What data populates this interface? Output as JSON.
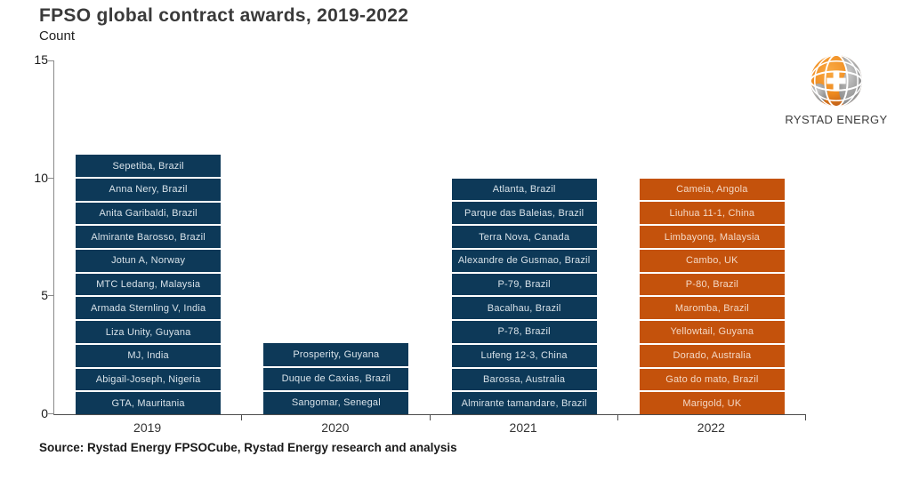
{
  "page": {
    "title": "FPSO global contract awards, 2019-2022",
    "subtitle": "Count",
    "source": "Source: Rystad Energy FPSOCube, Rystad Energy research and analysis",
    "logo_text": "RYSTAD ENERGY"
  },
  "colors": {
    "navy": "#0d3958",
    "orange": "#c4520c",
    "navy_label": "#d8e2e9",
    "orange_label": "#f4d8c5",
    "axis": "#4d4d4d",
    "logo_orange": "#ef8b1f",
    "logo_gray": "#8c8c8c"
  },
  "chart_data": {
    "type": "bar",
    "stacked": true,
    "title": "FPSO global contract awards, 2019-2022",
    "ylabel": "Count",
    "xlabel": "",
    "ylim": [
      0,
      15
    ],
    "yticks": [
      0,
      5,
      10,
      15
    ],
    "grid": false,
    "legend": "none",
    "categories": [
      "2019",
      "2020",
      "2021",
      "2022"
    ],
    "unit_per_segment": 1,
    "totals": {
      "2019": 11,
      "2020": 3,
      "2021": 10,
      "2022": 10
    },
    "bars": [
      {
        "category": "2019",
        "color": "#0d3958",
        "label_color": "#d8e2e9",
        "total": 11,
        "segments_top_to_bottom": [
          "Sepetiba, Brazil",
          "Anna Nery, Brazil",
          "Anita Garibaldi, Brazil",
          "Almirante Barosso, Brazil",
          "Jotun A, Norway",
          "MTC Ledang, Malaysia",
          "Armada Sternling V, India",
          "Liza Unity, Guyana",
          "MJ, India",
          "Abigail-Joseph, Nigeria",
          "GTA, Mauritania"
        ]
      },
      {
        "category": "2020",
        "color": "#0d3958",
        "label_color": "#d8e2e9",
        "total": 3,
        "segments_top_to_bottom": [
          "Prosperity, Guyana",
          "Duque de Caxias, Brazil",
          "Sangomar, Senegal"
        ]
      },
      {
        "category": "2021",
        "color": "#0d3958",
        "label_color": "#d8e2e9",
        "total": 10,
        "segments_top_to_bottom": [
          "Atlanta, Brazil",
          "Parque das Baleias, Brazil",
          "Terra Nova, Canada",
          "Alexandre de Gusmao, Brazil",
          "P-79, Brazil",
          "Bacalhau, Brazil",
          "P-78, Brazil",
          "Lufeng 12-3, China",
          "Barossa, Australia",
          "Almirante tamandare, Brazil"
        ]
      },
      {
        "category": "2022",
        "color": "#c4520c",
        "label_color": "#f4d8c5",
        "total": 10,
        "segments_top_to_bottom": [
          "Cameia, Angola",
          "Liuhua 11-1, China",
          "Limbayong, Malaysia",
          "Cambo, UK",
          "P-80, Brazil",
          "Maromba, Brazil",
          "Yellowtail, Guyana",
          "Dorado, Australia",
          "Gato do mato, Brazil",
          "Marigold, UK"
        ]
      }
    ]
  }
}
